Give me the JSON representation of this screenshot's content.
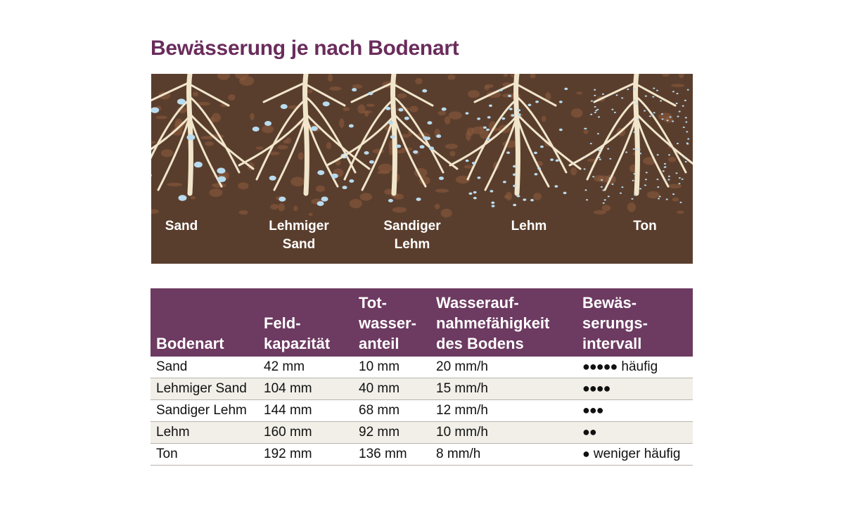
{
  "title": "Bewässerung je nach Bodenart",
  "illustration": {
    "background_color": "#5a3e2d",
    "root_color": "#f1e6cc",
    "water_color": "#b9dcf0",
    "labels": [
      {
        "line1": "Sand",
        "line2": ""
      },
      {
        "line1": "Lehmiger",
        "line2": "Sand"
      },
      {
        "line1": "Sandiger",
        "line2": "Lehm"
      },
      {
        "line1": "Lehm",
        "line2": ""
      },
      {
        "line1": "Ton",
        "line2": ""
      }
    ]
  },
  "table": {
    "header_color": "#6d3a61",
    "headers": [
      {
        "l1": "",
        "l2": "",
        "l3": "Bodenart"
      },
      {
        "l1": "",
        "l2": "Feld-",
        "l3": "kapazität"
      },
      {
        "l1": "Tot-",
        "l2": "wasser-",
        "l3": "anteil"
      },
      {
        "l1": "Wasserauf-",
        "l2": "nahmefähigkeit",
        "l3": "des Bodens"
      },
      {
        "l1": "Bewäs-",
        "l2": "serungs-",
        "l3": "intervall"
      }
    ],
    "rows": [
      {
        "bodenart": "Sand",
        "feldkapazitaet": "42 mm",
        "totwasser": "10 mm",
        "aufnahme": "20 mm/h",
        "dots": "●●●●●",
        "note": "häufig"
      },
      {
        "bodenart": "Lehmiger Sand",
        "feldkapazitaet": "104 mm",
        "totwasser": "40 mm",
        "aufnahme": "15 mm/h",
        "dots": "●●●●",
        "note": ""
      },
      {
        "bodenart": "Sandiger Lehm",
        "feldkapazitaet": "144 mm",
        "totwasser": "68 mm",
        "aufnahme": "12 mm/h",
        "dots": "●●●",
        "note": ""
      },
      {
        "bodenart": "Lehm",
        "feldkapazitaet": "160 mm",
        "totwasser": "92 mm",
        "aufnahme": "10 mm/h",
        "dots": "●●",
        "note": ""
      },
      {
        "bodenart": "Ton",
        "feldkapazitaet": "192 mm",
        "totwasser": "136 mm",
        "aufnahme": "8 mm/h",
        "dots": "●",
        "note": "weniger häufig"
      }
    ]
  }
}
